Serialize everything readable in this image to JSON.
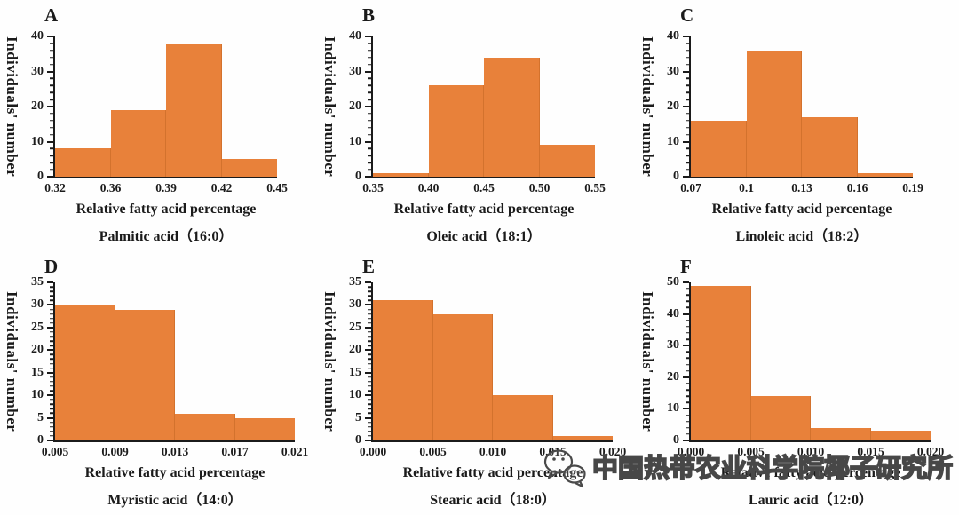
{
  "figure": {
    "background": "#fefefe",
    "bar_color": "#E8813A",
    "axis_color": "#1b1b1b",
    "text_color": "#1b1b1b",
    "ylabel_shared": "Individuals' number",
    "xlabel_shared": "Relative fatty acid percentage"
  },
  "chart_data": [
    {
      "type": "bar",
      "panel_label": "A",
      "title": "Palmitic acid（16:0）",
      "xlabel": "Relative fatty acid percentage",
      "ylabel": "Individuals' number",
      "x_tick_labels": [
        "0.32",
        "0.36",
        "0.39",
        "0.42",
        "0.45"
      ],
      "bin_counts": [
        8,
        19,
        38,
        5
      ],
      "y_ticks": [
        0,
        10,
        20,
        30,
        40
      ],
      "ylim": [
        0,
        40
      ],
      "y_minor_step": 2,
      "grid": "off",
      "legend": "none"
    },
    {
      "type": "bar",
      "panel_label": "B",
      "title": "Oleic acid（18:1）",
      "xlabel": "Relative fatty acid percentage",
      "ylabel": "Individuals' number",
      "x_tick_labels": [
        "0.35",
        "0.40",
        "0.45",
        "0.50",
        "0.55"
      ],
      "bin_counts": [
        1,
        26,
        34,
        9
      ],
      "y_ticks": [
        0,
        10,
        20,
        30,
        40
      ],
      "ylim": [
        0,
        40
      ],
      "y_minor_step": 2,
      "grid": "off",
      "legend": "none"
    },
    {
      "type": "bar",
      "panel_label": "C",
      "title": "Linoleic acid（18:2）",
      "xlabel": "Relative fatty acid percentage",
      "ylabel": "Individuals' number",
      "x_tick_labels": [
        "0.07",
        "0.1",
        "0.13",
        "0.16",
        "0.19"
      ],
      "bin_counts": [
        16,
        36,
        17,
        1
      ],
      "y_ticks": [
        0,
        10,
        20,
        30,
        40
      ],
      "ylim": [
        0,
        40
      ],
      "y_minor_step": 2,
      "grid": "off",
      "legend": "none"
    },
    {
      "type": "bar",
      "panel_label": "D",
      "title": "Myristic acid（14:0）",
      "xlabel": "Relative fatty acid percentage",
      "ylabel": "Individuals' number",
      "x_tick_labels": [
        "0.005",
        "0.009",
        "0.013",
        "0.017",
        "0.021"
      ],
      "bin_counts": [
        30,
        29,
        6,
        5
      ],
      "y_ticks": [
        0,
        5,
        10,
        15,
        20,
        25,
        30,
        35
      ],
      "ylim": [
        0,
        35
      ],
      "y_minor_step": 1,
      "grid": "off",
      "legend": "none"
    },
    {
      "type": "bar",
      "panel_label": "E",
      "title": "Stearic acid（18:0）",
      "xlabel": "Relative fatty acid percentage",
      "ylabel": "Individuals' number",
      "x_tick_labels": [
        "0.000",
        "0.005",
        "0.010",
        "0.015",
        "0.020"
      ],
      "bin_counts": [
        31,
        28,
        10,
        1
      ],
      "y_ticks": [
        0,
        5,
        10,
        15,
        20,
        25,
        30,
        35
      ],
      "ylim": [
        0,
        35
      ],
      "y_minor_step": 1,
      "grid": "off",
      "legend": "none"
    },
    {
      "type": "bar",
      "panel_label": "F",
      "title": "Lauric acid（12:0）",
      "xlabel": "Relative fatty acid percentage",
      "ylabel": "Individuals' number",
      "x_tick_labels": [
        "0.000",
        "0.005",
        "0.010",
        "0.015",
        "0.020"
      ],
      "bin_counts": [
        49,
        14,
        4,
        3
      ],
      "y_ticks": [
        0,
        10,
        20,
        30,
        40,
        50
      ],
      "ylim": [
        0,
        50
      ],
      "y_minor_step": 2,
      "grid": "off",
      "legend": "none"
    }
  ],
  "watermark": {
    "icon": "wechat-logo-icon",
    "text": "中国热带农业科学院椰子研究所",
    "style": "outlined"
  }
}
